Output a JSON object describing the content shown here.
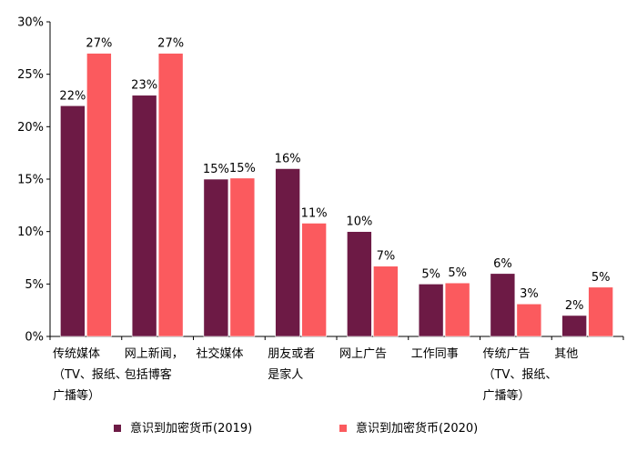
{
  "chart_data": {
    "type": "bar",
    "categories": [
      [
        "传统媒体",
        "（TV、报纸、",
        "广播等）"
      ],
      [
        "网上新闻，",
        "包括博客"
      ],
      [
        "社交媒体"
      ],
      [
        "朋友或者",
        "是家人"
      ],
      [
        "网上广告"
      ],
      [
        "工作同事"
      ],
      [
        "传统广告",
        "（TV、报纸、",
        "广播等）"
      ],
      [
        "其他"
      ]
    ],
    "series": [
      {
        "name": "意识到加密货币(2019)",
        "color": "#6d1a45",
        "values": [
          22,
          23,
          15,
          16,
          10,
          5,
          6,
          2
        ],
        "labels": [
          "22%",
          "23%",
          "15%",
          "16%",
          "10%",
          "5%",
          "6%",
          "2%"
        ]
      },
      {
        "name": "意识到加密货币(2020)",
        "color": "#fb5a5e",
        "values": [
          27,
          27,
          15.1,
          10.8,
          6.7,
          5.1,
          3.1,
          4.7
        ],
        "labels": [
          "27%",
          "27%",
          "15%",
          "11%",
          "7%",
          "5%",
          "3%",
          "5%"
        ]
      }
    ],
    "ylim": [
      0,
      30
    ],
    "yticks": [
      0,
      5,
      10,
      15,
      20,
      25,
      30
    ],
    "ytick_labels": [
      "0%",
      "5%",
      "10%",
      "15%",
      "20%",
      "25%",
      "30%"
    ],
    "legend_position": "bottom",
    "grid": false
  }
}
